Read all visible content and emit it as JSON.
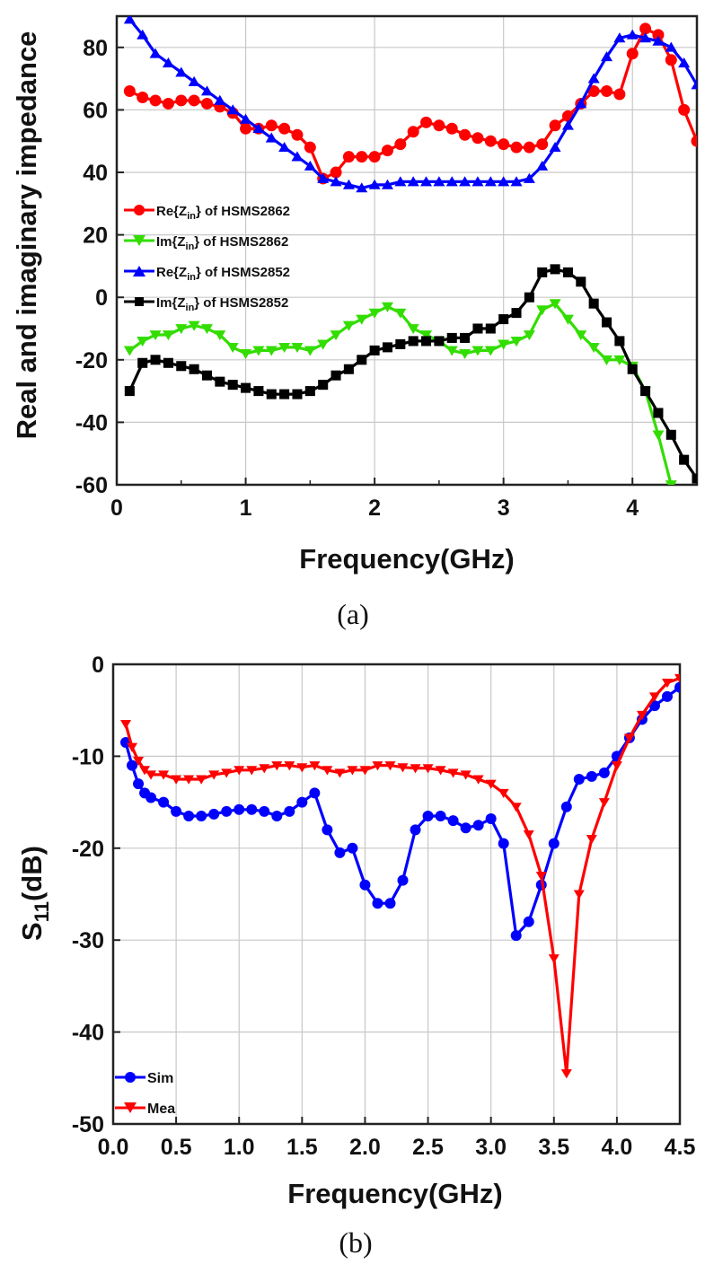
{
  "chart_data": [
    {
      "id": "a",
      "type": "line",
      "panel_label": "(a)",
      "xlabel": "Frequency(GHz)",
      "ylabel": "Real and imaginary impedance",
      "xlim": [
        0,
        4.5
      ],
      "ylim": [
        -60,
        90
      ],
      "xticks": [
        0,
        1,
        2,
        3,
        4
      ],
      "xtick_labels": [
        "0",
        "1",
        "2",
        "3",
        "4"
      ],
      "yticks": [
        -60,
        -40,
        -20,
        0,
        20,
        40,
        60,
        80
      ],
      "ytick_labels": [
        "-60",
        "-40",
        "-20",
        "0",
        "20",
        "40",
        "60",
        "80"
      ],
      "grid": true,
      "legend_position": "middle-left",
      "series": [
        {
          "name": "Re{Zin} of HSMS2862",
          "legend_main": "Re{Z",
          "legend_sub": "in",
          "legend_rest": "} of HSMS2862",
          "color": "#ff0000",
          "marker": "circle",
          "x": [
            0.1,
            0.2,
            0.3,
            0.4,
            0.5,
            0.6,
            0.7,
            0.8,
            0.9,
            1.0,
            1.1,
            1.2,
            1.3,
            1.4,
            1.5,
            1.6,
            1.7,
            1.8,
            1.9,
            2.0,
            2.1,
            2.2,
            2.3,
            2.4,
            2.5,
            2.6,
            2.7,
            2.8,
            2.9,
            3.0,
            3.1,
            3.2,
            3.3,
            3.4,
            3.5,
            3.6,
            3.7,
            3.8,
            3.9,
            4.0,
            4.1,
            4.2,
            4.3,
            4.4,
            4.5
          ],
          "y": [
            66,
            64,
            63,
            62,
            63,
            63,
            62,
            61,
            59,
            54,
            54,
            55,
            54,
            52,
            48,
            38,
            40,
            45,
            45,
            45,
            47,
            49,
            53,
            56,
            55,
            54,
            52,
            51,
            50,
            49,
            48,
            48,
            49,
            55,
            58,
            62,
            66,
            66,
            65,
            78,
            86,
            84,
            76,
            60,
            50
          ]
        },
        {
          "name": "Im{Zin} of HSMS2862",
          "legend_main": "Im{Z",
          "legend_sub": "in",
          "legend_rest": "} of HSMS2862",
          "color": "#33dd00",
          "marker": "triangle-down",
          "x": [
            0.1,
            0.2,
            0.3,
            0.4,
            0.5,
            0.6,
            0.7,
            0.8,
            0.9,
            1.0,
            1.1,
            1.2,
            1.3,
            1.4,
            1.5,
            1.6,
            1.7,
            1.8,
            1.9,
            2.0,
            2.1,
            2.2,
            2.3,
            2.4,
            2.5,
            2.6,
            2.7,
            2.8,
            2.9,
            3.0,
            3.1,
            3.2,
            3.3,
            3.4,
            3.5,
            3.6,
            3.7,
            3.8,
            3.9,
            4.0,
            4.1,
            4.2,
            4.3
          ],
          "y": [
            -17,
            -14,
            -12,
            -12,
            -10,
            -9,
            -10,
            -12,
            -16,
            -18,
            -17,
            -17,
            -16,
            -16,
            -17,
            -15,
            -12,
            -9,
            -7,
            -5,
            -3,
            -5,
            -10,
            -12,
            -14,
            -17,
            -18,
            -17,
            -17,
            -15,
            -14,
            -12,
            -4,
            -2,
            -7,
            -12,
            -16,
            -20,
            -20,
            -22,
            -30,
            -44,
            -60
          ]
        },
        {
          "name": "Re{Zin} of HSMS2852",
          "legend_main": "Re{Z",
          "legend_sub": "in",
          "legend_rest": "} of HSMS2852",
          "color": "#0000ff",
          "marker": "triangle-up",
          "x": [
            0.1,
            0.2,
            0.3,
            0.4,
            0.5,
            0.6,
            0.7,
            0.8,
            0.9,
            1.0,
            1.1,
            1.2,
            1.3,
            1.4,
            1.5,
            1.6,
            1.7,
            1.8,
            1.9,
            2.0,
            2.1,
            2.2,
            2.3,
            2.4,
            2.5,
            2.6,
            2.7,
            2.8,
            2.9,
            3.0,
            3.1,
            3.2,
            3.3,
            3.4,
            3.5,
            3.6,
            3.7,
            3.8,
            3.9,
            4.0,
            4.1,
            4.2,
            4.3,
            4.4,
            4.5
          ],
          "y": [
            89,
            84,
            78,
            75,
            72,
            69,
            66,
            63,
            60,
            57,
            54,
            51,
            48,
            45,
            42,
            38,
            37,
            36,
            35,
            36,
            36,
            37,
            37,
            37,
            37,
            37,
            37,
            37,
            37,
            37,
            37,
            38,
            42,
            48,
            55,
            62,
            70,
            77,
            83,
            84,
            83,
            82,
            80,
            75,
            68
          ]
        },
        {
          "name": "Im{Zin} of HSMS2852",
          "legend_main": "Im{Z",
          "legend_sub": "in",
          "legend_rest": "} of HSMS2852",
          "color": "#000000",
          "marker": "square",
          "x": [
            0.1,
            0.2,
            0.3,
            0.4,
            0.5,
            0.6,
            0.7,
            0.8,
            0.9,
            1.0,
            1.1,
            1.2,
            1.3,
            1.4,
            1.5,
            1.6,
            1.7,
            1.8,
            1.9,
            2.0,
            2.1,
            2.2,
            2.3,
            2.4,
            2.5,
            2.6,
            2.7,
            2.8,
            2.9,
            3.0,
            3.1,
            3.2,
            3.3,
            3.4,
            3.5,
            3.6,
            3.7,
            3.8,
            3.9,
            4.0,
            4.1,
            4.2,
            4.3,
            4.4,
            4.5
          ],
          "y": [
            -30,
            -21,
            -20,
            -21,
            -22,
            -23,
            -25,
            -27,
            -28,
            -29,
            -30,
            -31,
            -31,
            -31,
            -30,
            -28,
            -25,
            -23,
            -20,
            -17,
            -16,
            -15,
            -14,
            -14,
            -14,
            -13,
            -13,
            -10,
            -10,
            -7,
            -5,
            0,
            8,
            9,
            8,
            5,
            -2,
            -8,
            -14,
            -23,
            -30,
            -37,
            -44,
            -52,
            -58
          ]
        }
      ]
    },
    {
      "id": "b",
      "type": "line",
      "panel_label": "(b)",
      "xlabel": "Frequency(GHz)",
      "ylabel_main": "S",
      "ylabel_sub": "11",
      "ylabel_rest": "(dB)",
      "xlim": [
        0,
        4.5
      ],
      "ylim": [
        -50,
        0
      ],
      "xticks": [
        0,
        0.5,
        1,
        1.5,
        2,
        2.5,
        3,
        3.5,
        4,
        4.5
      ],
      "xtick_labels": [
        "0.0",
        "0.5",
        "1.0",
        "1.5",
        "2.0",
        "2.5",
        "3.0",
        "3.5",
        "4.0",
        "4.5"
      ],
      "yticks": [
        -50,
        -40,
        -30,
        -20,
        -10,
        0
      ],
      "ytick_labels": [
        "-50",
        "-40",
        "-30",
        "-20",
        "-10",
        "0"
      ],
      "grid": true,
      "legend_position": "bottom-left",
      "series": [
        {
          "name": "Sim",
          "color": "#0000ff",
          "marker": "circle",
          "x": [
            0.1,
            0.15,
            0.2,
            0.25,
            0.3,
            0.4,
            0.5,
            0.6,
            0.7,
            0.8,
            0.9,
            1.0,
            1.1,
            1.2,
            1.3,
            1.4,
            1.5,
            1.6,
            1.7,
            1.8,
            1.9,
            2.0,
            2.1,
            2.2,
            2.3,
            2.4,
            2.5,
            2.6,
            2.7,
            2.8,
            2.9,
            3.0,
            3.1,
            3.2,
            3.3,
            3.4,
            3.5,
            3.6,
            3.7,
            3.8,
            3.9,
            4.0,
            4.1,
            4.2,
            4.3,
            4.4,
            4.5
          ],
          "y": [
            -8.5,
            -11,
            -13,
            -14,
            -14.5,
            -15,
            -16,
            -16.5,
            -16.5,
            -16.3,
            -16,
            -15.8,
            -15.8,
            -16,
            -16.5,
            -16,
            -15,
            -14,
            -18,
            -20.5,
            -20,
            -24,
            -26,
            -26,
            -23.5,
            -18,
            -16.5,
            -16.5,
            -17,
            -17.8,
            -17.5,
            -16.8,
            -19.5,
            -29.5,
            -28,
            -24,
            -19.5,
            -15.5,
            -12.5,
            -12.2,
            -11.8,
            -10,
            -8,
            -6,
            -4.5,
            -3.5,
            -2.5
          ]
        },
        {
          "name": "Mea",
          "color": "#ff0000",
          "marker": "triangle-down",
          "x": [
            0.1,
            0.15,
            0.2,
            0.25,
            0.3,
            0.4,
            0.5,
            0.6,
            0.7,
            0.8,
            0.9,
            1.0,
            1.1,
            1.2,
            1.3,
            1.4,
            1.5,
            1.6,
            1.7,
            1.8,
            1.9,
            2.0,
            2.1,
            2.2,
            2.3,
            2.4,
            2.5,
            2.6,
            2.7,
            2.8,
            2.9,
            3.0,
            3.1,
            3.2,
            3.3,
            3.4,
            3.5,
            3.6,
            3.7,
            3.8,
            3.9,
            4.0,
            4.1,
            4.2,
            4.3,
            4.4,
            4.5
          ],
          "y": [
            -6.5,
            -9,
            -10.5,
            -11.5,
            -12,
            -12,
            -12.5,
            -12.5,
            -12.5,
            -12,
            -11.8,
            -11.5,
            -11.5,
            -11.3,
            -11,
            -11,
            -11.2,
            -11,
            -11.5,
            -11.8,
            -11.5,
            -11.5,
            -11,
            -11,
            -11.2,
            -11.3,
            -11.3,
            -11.5,
            -11.8,
            -12,
            -12.5,
            -13,
            -14,
            -15.5,
            -18.5,
            -23,
            -32,
            -44.5,
            -25,
            -19,
            -15,
            -11,
            -8,
            -5.5,
            -3.5,
            -2,
            -1.5
          ]
        }
      ]
    }
  ]
}
